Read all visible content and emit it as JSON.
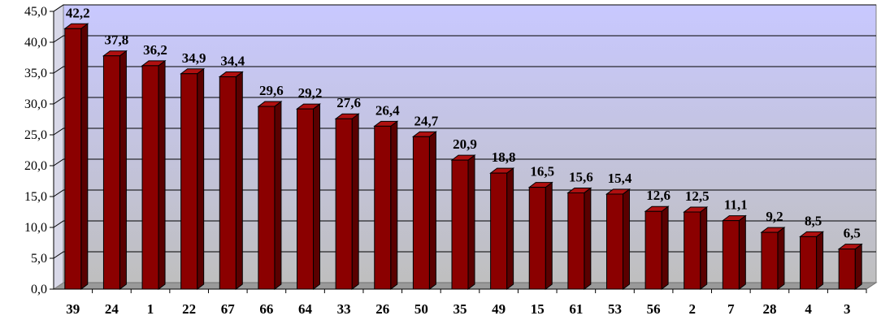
{
  "chart_data": {
    "type": "bar",
    "categories": [
      "39",
      "24",
      "1",
      "22",
      "67",
      "66",
      "64",
      "33",
      "26",
      "50",
      "35",
      "49",
      "15",
      "61",
      "53",
      "56",
      "2",
      "7",
      "28",
      "4",
      "3"
    ],
    "values": [
      42.2,
      37.8,
      36.2,
      34.9,
      34.4,
      29.6,
      29.2,
      27.6,
      26.4,
      24.7,
      20.9,
      18.8,
      16.5,
      15.6,
      15.4,
      12.6,
      12.5,
      11.1,
      9.2,
      8.5,
      6.5
    ],
    "value_labels": [
      "42,2",
      "37,8",
      "36,2",
      "34,9",
      "34,4",
      "29,6",
      "29,2",
      "27,6",
      "26,4",
      "24,7",
      "20,9",
      "18,8",
      "16,5",
      "15,6",
      "15,4",
      "12,6",
      "12,5",
      "11,1",
      "9,2",
      "8,5",
      "6,5"
    ],
    "y_ticks": [
      0,
      5,
      10,
      15,
      20,
      25,
      30,
      35,
      40,
      45
    ],
    "y_tick_labels": [
      "0,0",
      "5,0",
      "10,0",
      "15,0",
      "20,0",
      "25,0",
      "30,0",
      "35,0",
      "40,0",
      "45,0"
    ],
    "ylim": [
      0,
      45
    ],
    "grid": true,
    "legend": "none",
    "colors": {
      "bar_front": "#8b0000",
      "bar_side": "#5a0000",
      "bar_top": "#b01010",
      "wall_top": "#c8c8ff",
      "wall_bottom": "#bfbfbf",
      "floor": "#9a9a9a",
      "gridline": "#000000"
    }
  }
}
